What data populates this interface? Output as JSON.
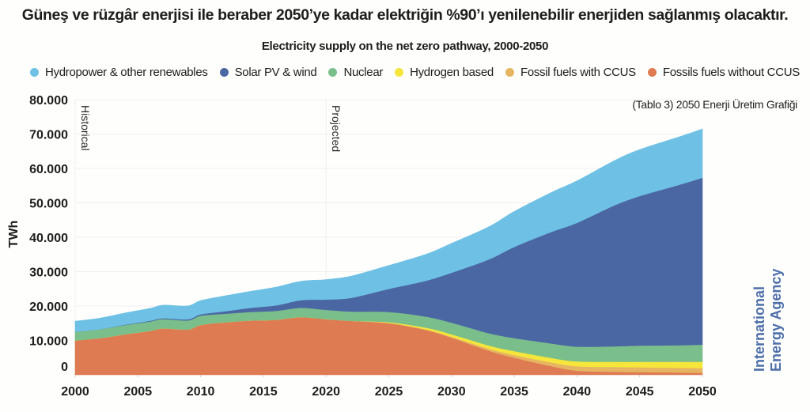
{
  "headline": "Güneş ve rüzgâr enerjisi ile beraber 2050’ye kadar elektriğin %90’ı yenilenebilir enerjiden sağlanmış olacaktır.",
  "note": "(Tablo 3) 2050 Enerji Üretim Grafiği",
  "source": {
    "line1": "International",
    "line2": "Energy Agency",
    "color": "#4e6faa"
  },
  "chart_data": {
    "type": "area",
    "stacked": true,
    "title": "Electricity supply on the net zero pathway, 2000-2050",
    "xlabel": "",
    "ylabel": "TWh",
    "xlim": [
      2000,
      2050
    ],
    "ylim": [
      0,
      80000
    ],
    "grid": true,
    "legend_position": "top",
    "x_ticks": [
      "2000",
      "2005",
      "2010",
      "2015",
      "2020",
      "2025",
      "2030",
      "2035",
      "2040",
      "2045",
      "2050"
    ],
    "y_ticks": [
      "0",
      "10.000",
      "20.000",
      "30.000",
      "40.000",
      "50.000",
      "60.000",
      "70.000",
      "80.000"
    ],
    "annotations": [
      {
        "text": "Historical",
        "x": 2000
      },
      {
        "text": "Projected",
        "x": 2020
      }
    ],
    "x": [
      2000,
      2002,
      2004,
      2006,
      2007,
      2009,
      2010,
      2012,
      2014,
      2016,
      2018,
      2020,
      2022,
      2025,
      2028,
      2030,
      2033,
      2035,
      2038,
      2040,
      2043,
      2045,
      2048,
      2050
    ],
    "series": [
      {
        "name": "Fossils fuels without CCUS",
        "color": "#de7b52",
        "values": [
          10000,
          10700,
          11800,
          12800,
          13500,
          13200,
          14500,
          15300,
          15800,
          16000,
          16800,
          16200,
          15700,
          15000,
          13000,
          10800,
          7000,
          5000,
          2500,
          1200,
          900,
          800,
          700,
          600
        ]
      },
      {
        "name": "Fossil fuels with CCUS",
        "color": "#e6b561",
        "values": [
          0,
          0,
          0,
          0,
          0,
          0,
          0,
          0,
          0,
          0,
          0,
          0,
          0,
          100,
          200,
          300,
          600,
          800,
          1100,
          1300,
          1400,
          1400,
          1400,
          1400
        ]
      },
      {
        "name": "Hydrogen based",
        "color": "#f6e63b",
        "values": [
          0,
          0,
          0,
          0,
          0,
          0,
          0,
          0,
          0,
          0,
          0,
          0,
          0,
          200,
          500,
          700,
          900,
          1100,
          1300,
          1400,
          1500,
          1600,
          1700,
          1800
        ]
      },
      {
        "name": "Nuclear",
        "color": "#7abf8b",
        "values": [
          2500,
          2600,
          2700,
          2750,
          2700,
          2650,
          2700,
          2500,
          2500,
          2600,
          2700,
          2700,
          2700,
          3000,
          3200,
          3400,
          3600,
          3800,
          4200,
          4300,
          4500,
          4700,
          4800,
          5000
        ]
      },
      {
        "name": "Solar PV & wind",
        "color": "#4b67a3",
        "values": [
          0,
          0,
          100,
          200,
          250,
          300,
          400,
          700,
          1200,
          1600,
          2200,
          3000,
          4000,
          6700,
          10500,
          14500,
          21500,
          26500,
          32500,
          36000,
          41000,
          43500,
          46500,
          48500
        ]
      },
      {
        "name": "Hydropower & other renewables",
        "color": "#6ec1e4",
        "values": [
          3100,
          3200,
          3400,
          3600,
          3800,
          3900,
          4000,
          4500,
          4800,
          5300,
          5500,
          5800,
          6300,
          6800,
          7700,
          8500,
          9500,
          10300,
          11500,
          12200,
          13000,
          13500,
          13900,
          14200
        ]
      }
    ]
  }
}
